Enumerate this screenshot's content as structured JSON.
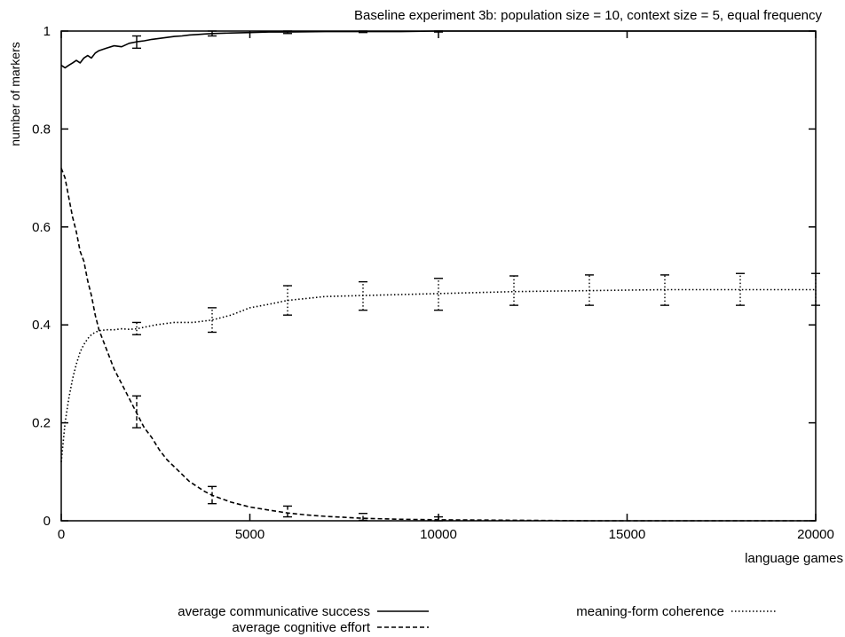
{
  "chart_data": {
    "type": "line",
    "title": "Baseline experiment 3b: population size = 10, context size = 5, equal frequency",
    "xlabel": "language games",
    "ylabel": "number of markers",
    "xlim": [
      0,
      20000
    ],
    "ylim": [
      0,
      1
    ],
    "x_ticks": [
      "0",
      "5000",
      "10000",
      "15000",
      "20000"
    ],
    "y_ticks": [
      "0",
      "0.2",
      "0.4",
      "0.6",
      "0.8",
      "1"
    ],
    "grid": false,
    "legend_position": "bottom",
    "series": [
      {
        "name": "average communicative success",
        "style": "solid",
        "x": [
          0,
          100,
          200,
          300,
          400,
          500,
          600,
          700,
          800,
          900,
          1000,
          1200,
          1400,
          1600,
          1800,
          2000,
          2200,
          2400,
          2600,
          2800,
          3000,
          3200,
          3400,
          3600,
          3800,
          4000,
          4500,
          5000,
          5500,
          6000,
          7000,
          8000,
          9000,
          10000,
          12000,
          14000,
          16000,
          18000,
          20000
        ],
        "values": [
          0.93,
          0.925,
          0.93,
          0.935,
          0.94,
          0.935,
          0.945,
          0.95,
          0.945,
          0.955,
          0.96,
          0.965,
          0.97,
          0.968,
          0.975,
          0.978,
          0.98,
          0.983,
          0.985,
          0.987,
          0.989,
          0.99,
          0.992,
          0.993,
          0.994,
          0.995,
          0.996,
          0.997,
          0.998,
          0.998,
          0.999,
          0.999,
          0.999,
          1.0,
          1.0,
          1.0,
          1.0,
          1.0,
          1.0
        ],
        "error_bars": [
          {
            "x": 2000,
            "low": 0.965,
            "high": 0.99
          },
          {
            "x": 4000,
            "low": 0.99,
            "high": 1.0
          },
          {
            "x": 6000,
            "low": 0.995,
            "high": 1.0
          },
          {
            "x": 8000,
            "low": 0.997,
            "high": 1.0
          },
          {
            "x": 10000,
            "low": 0.998,
            "high": 1.0
          }
        ]
      },
      {
        "name": "average cognitive effort",
        "style": "dashed",
        "x": [
          0,
          100,
          200,
          300,
          400,
          500,
          600,
          700,
          800,
          900,
          1000,
          1200,
          1400,
          1600,
          1800,
          2000,
          2200,
          2400,
          2600,
          2800,
          3000,
          3200,
          3400,
          3600,
          3800,
          4000,
          4500,
          5000,
          5500,
          6000,
          6500,
          7000,
          7500,
          8000,
          9000,
          10000,
          12000,
          14000,
          16000,
          18000,
          20000
        ],
        "values": [
          0.72,
          0.7,
          0.66,
          0.62,
          0.59,
          0.55,
          0.53,
          0.49,
          0.46,
          0.42,
          0.39,
          0.35,
          0.31,
          0.28,
          0.25,
          0.22,
          0.19,
          0.17,
          0.145,
          0.125,
          0.11,
          0.095,
          0.08,
          0.07,
          0.06,
          0.052,
          0.038,
          0.028,
          0.022,
          0.016,
          0.012,
          0.009,
          0.007,
          0.005,
          0.003,
          0.002,
          0.001,
          0.0,
          0.0,
          0.0,
          0.0
        ],
        "error_bars": [
          {
            "x": 2000,
            "low": 0.19,
            "high": 0.255
          },
          {
            "x": 4000,
            "low": 0.035,
            "high": 0.07
          },
          {
            "x": 6000,
            "low": 0.008,
            "high": 0.03
          },
          {
            "x": 8000,
            "low": 0.001,
            "high": 0.015
          },
          {
            "x": 10000,
            "low": 0.0,
            "high": 0.008
          }
        ]
      },
      {
        "name": "meaning-form coherence",
        "style": "dotted",
        "x": [
          0,
          100,
          200,
          300,
          400,
          500,
          600,
          700,
          800,
          900,
          1000,
          1200,
          1400,
          1600,
          1800,
          2000,
          2500,
          3000,
          3500,
          4000,
          4500,
          5000,
          5500,
          6000,
          7000,
          8000,
          9000,
          10000,
          11000,
          12000,
          13000,
          14000,
          15000,
          16000,
          17000,
          18000,
          19000,
          20000
        ],
        "values": [
          0.12,
          0.2,
          0.25,
          0.29,
          0.32,
          0.345,
          0.36,
          0.372,
          0.38,
          0.385,
          0.388,
          0.39,
          0.39,
          0.392,
          0.391,
          0.392,
          0.4,
          0.405,
          0.405,
          0.41,
          0.42,
          0.435,
          0.442,
          0.45,
          0.458,
          0.46,
          0.462,
          0.464,
          0.466,
          0.468,
          0.469,
          0.47,
          0.471,
          0.472,
          0.472,
          0.472,
          0.472,
          0.472
        ],
        "error_bars": [
          {
            "x": 2000,
            "low": 0.38,
            "high": 0.405
          },
          {
            "x": 4000,
            "low": 0.385,
            "high": 0.435
          },
          {
            "x": 6000,
            "low": 0.42,
            "high": 0.48
          },
          {
            "x": 8000,
            "low": 0.43,
            "high": 0.488
          },
          {
            "x": 10000,
            "low": 0.43,
            "high": 0.495
          },
          {
            "x": 12000,
            "low": 0.44,
            "high": 0.5
          },
          {
            "x": 14000,
            "low": 0.44,
            "high": 0.502
          },
          {
            "x": 16000,
            "low": 0.44,
            "high": 0.502
          },
          {
            "x": 18000,
            "low": 0.44,
            "high": 0.505
          },
          {
            "x": 20000,
            "low": 0.44,
            "high": 0.505
          }
        ]
      }
    ]
  }
}
